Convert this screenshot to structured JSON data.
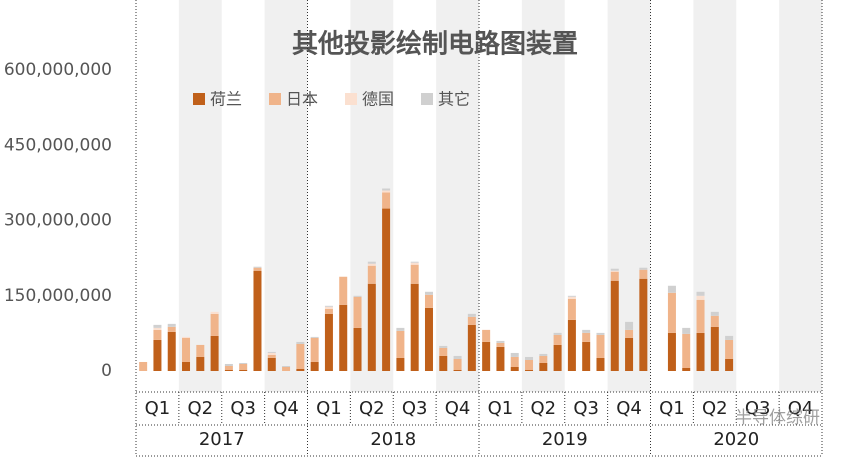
{
  "chart_data": {
    "type": "stacked-bar",
    "title": "其他投影绘制电路图装置",
    "categories": [
      null,
      null,
      null,
      null,
      null,
      null,
      null,
      null,
      null,
      null,
      null,
      null,
      null,
      null,
      null,
      null,
      null,
      null,
      null,
      null,
      null,
      null,
      null,
      null,
      null,
      null,
      null,
      null,
      null,
      null,
      null,
      null,
      null,
      null,
      null,
      null,
      null,
      null,
      null,
      null,
      null,
      null,
      null,
      null,
      null,
      null,
      null,
      null
    ],
    "quarter_labels": [
      "Q1",
      "Q2",
      "Q3",
      "Q4",
      "Q1",
      "Q2",
      "Q3",
      "Q4",
      "Q1",
      "Q2",
      "Q3",
      "Q4",
      "Q1",
      "Q2",
      "Q3",
      "Q4"
    ],
    "year_labels": [
      "2017",
      "2018",
      "2019",
      "2020"
    ],
    "series": [
      {
        "name": "荷兰",
        "color": "#c0601a",
        "values": [
          0,
          62000000,
          78000000,
          18000000,
          28000000,
          70000000,
          2000000,
          2000000,
          200000000,
          26000000,
          0,
          4000000,
          18000000,
          114000000,
          132000000,
          86000000,
          174000000,
          324000000,
          26000000,
          174000000,
          126000000,
          30000000,
          2000000,
          92000000,
          58000000,
          48000000,
          8000000,
          2000000,
          16000000,
          52000000,
          102000000,
          58000000,
          26000000,
          180000000,
          66000000,
          184000000,
          null,
          76000000,
          6000000,
          76000000,
          88000000,
          24000000,
          null,
          null,
          null,
          null,
          null,
          null
        ]
      },
      {
        "name": "日本",
        "color": "#f0b48a",
        "values": [
          18000000,
          20000000,
          10000000,
          48000000,
          24000000,
          44000000,
          8000000,
          12000000,
          6000000,
          6000000,
          8000000,
          50000000,
          48000000,
          10000000,
          56000000,
          62000000,
          36000000,
          32000000,
          54000000,
          38000000,
          26000000,
          16000000,
          22000000,
          16000000,
          24000000,
          8000000,
          20000000,
          20000000,
          14000000,
          20000000,
          42000000,
          18000000,
          46000000,
          18000000,
          16000000,
          18000000,
          null,
          80000000,
          68000000,
          66000000,
          22000000,
          38000000,
          null,
          null,
          null,
          null,
          null,
          null
        ]
      },
      {
        "name": "德国",
        "color": "#fbe0d0",
        "values": [
          0,
          4000000,
          0,
          2000000,
          0,
          4000000,
          0,
          0,
          0,
          4000000,
          0,
          0,
          0,
          4000000,
          0,
          0,
          4000000,
          4000000,
          0,
          4000000,
          0,
          0,
          0,
          0,
          0,
          0,
          0,
          0,
          0,
          0,
          4000000,
          0,
          0,
          2000000,
          0,
          0,
          null,
          0,
          0,
          8000000,
          0,
          0,
          null,
          null,
          null,
          null,
          null,
          null
        ]
      },
      {
        "name": "其它",
        "color": "#d0d0d0",
        "values": [
          0,
          6000000,
          6000000,
          0,
          0,
          0,
          4000000,
          2000000,
          2000000,
          2000000,
          2000000,
          4000000,
          2000000,
          2000000,
          0,
          2000000,
          4000000,
          4000000,
          6000000,
          2000000,
          6000000,
          4000000,
          6000000,
          6000000,
          0,
          4000000,
          8000000,
          6000000,
          4000000,
          4000000,
          2000000,
          6000000,
          4000000,
          4000000,
          16000000,
          4000000,
          null,
          14000000,
          12000000,
          8000000,
          8000000,
          8000000,
          null,
          null,
          null,
          null,
          null,
          null
        ]
      }
    ],
    "ylim": [
      0,
      740000000
    ],
    "yticks": [
      0,
      {
        "value": 150000000,
        "label": "150,000,000"
      },
      {
        "value": 300000000,
        "label": "300,000,000"
      },
      {
        "value": 450000000,
        "label": "450,000,000"
      },
      {
        "value": 600000000,
        "label": "600,000,000"
      }
    ],
    "grid": false,
    "watermark": "半导体综研"
  }
}
